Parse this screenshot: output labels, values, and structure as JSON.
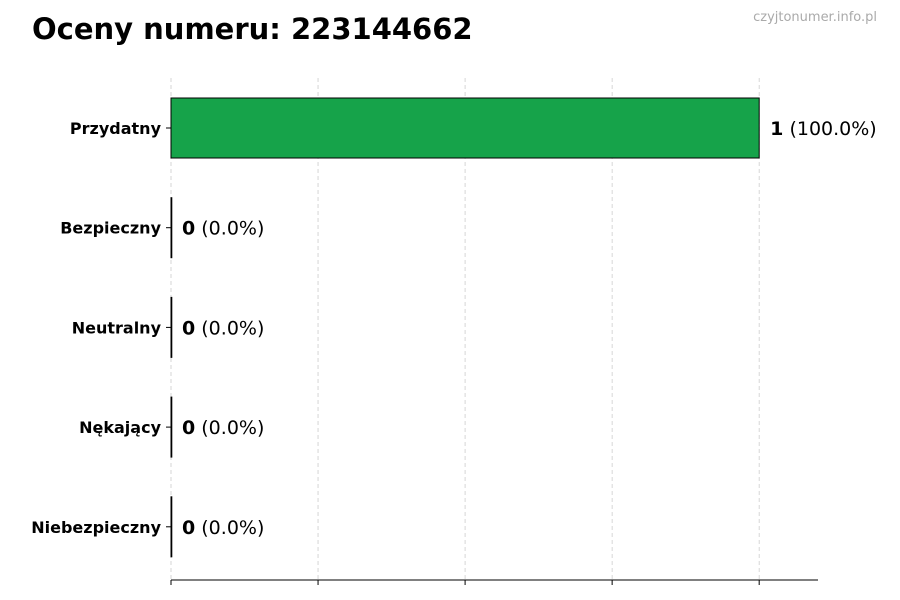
{
  "chart_data": {
    "type": "bar",
    "orientation": "horizontal",
    "title": "Oceny numeru: 223144662",
    "watermark": "czyjtonumer.info.pl",
    "categories": [
      "Przydatny",
      "Bezpieczny",
      "Neutralny",
      "Nękający",
      "Niebezpieczny"
    ],
    "values": [
      1,
      0,
      0,
      0,
      0
    ],
    "data_labels": [
      {
        "count": "1",
        "percent": "(100.0%)"
      },
      {
        "count": "0",
        "percent": "(0.0%)"
      },
      {
        "count": "0",
        "percent": "(0.0%)"
      },
      {
        "count": "0",
        "percent": "(0.0%)"
      },
      {
        "count": "0",
        "percent": "(0.0%)"
      }
    ],
    "colors": [
      "#16a34a",
      "#16a34a",
      "#16a34a",
      "#16a34a",
      "#16a34a"
    ],
    "xlim": [
      0,
      1.1
    ],
    "xticks": [
      0,
      0.25,
      0.5,
      0.75,
      1.0
    ],
    "xtick_labels_shown": false,
    "grid": "x, dashed",
    "xlabel": "",
    "ylabel": ""
  }
}
